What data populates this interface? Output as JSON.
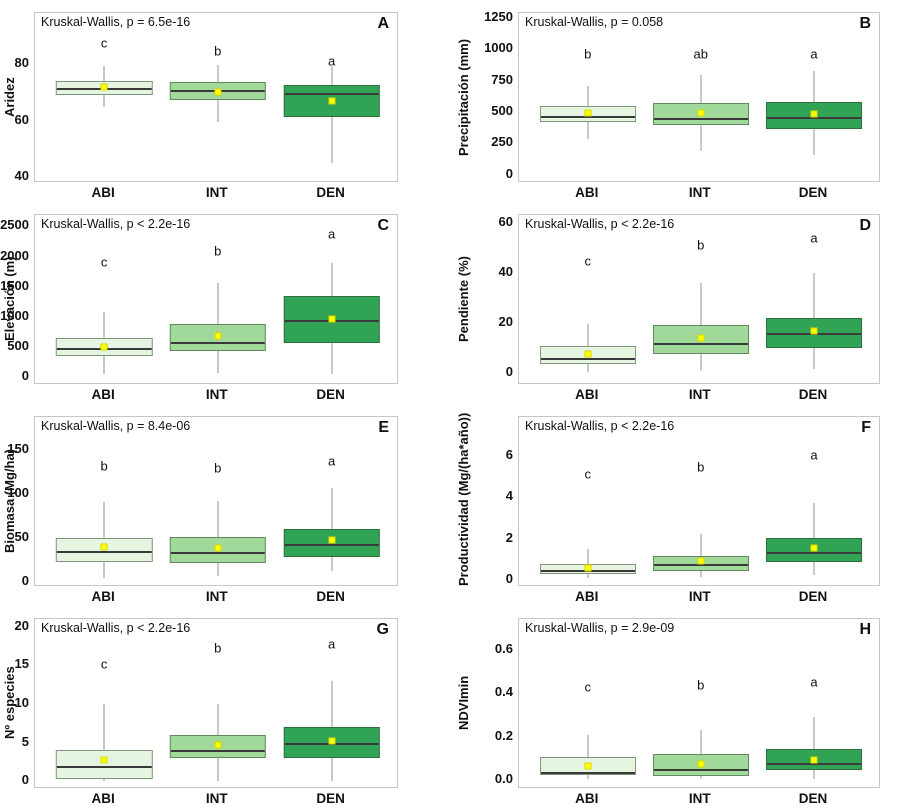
{
  "figure_title": "Kruskal-Wallis boxplot panels by forest density class",
  "groups": [
    "ABI",
    "INT",
    "DEN"
  ],
  "group_colors": [
    "#e5f5e0",
    "#a1d99b",
    "#31a354"
  ],
  "style": {
    "mean_marker_color": "#ffff00",
    "whisker_color": "#c9c9c9",
    "median_color": "#3a3a3a",
    "panel_border_color": "#c6c6c6",
    "box_border_color": "#4a5f4a"
  },
  "chart_data": [
    {
      "type": "boxplot",
      "panel": "A",
      "test_label": "Kruskal-Wallis, p = 6.5e-16",
      "ylabel": "Aridez",
      "ylim": [
        38,
        98
      ],
      "ticks": [
        {
          "v": 80,
          "label": "80"
        },
        {
          "v": 60,
          "label": "60"
        },
        {
          "v": 40,
          "label": "40"
        }
      ],
      "groups": [
        {
          "name": "ABI",
          "letter": "c",
          "letter_y": 87.5,
          "whisker_low": 64.9,
          "q1": 69.1,
          "median": 71.6,
          "q3": 74.1,
          "whisker_high": 79.3,
          "mean": 72.0
        },
        {
          "name": "INT",
          "letter": "b",
          "letter_y": 84.5,
          "whisker_low": 59.6,
          "q1": 67.4,
          "median": 70.8,
          "q3": 73.7,
          "whisker_high": 79.6,
          "mean": 70.0
        },
        {
          "name": "DEN",
          "letter": "a",
          "letter_y": 81.0,
          "whisker_low": 44.9,
          "q1": 61.4,
          "median": 69.8,
          "q3": 72.6,
          "whisker_high": 79.3,
          "mean": 67.0
        }
      ]
    },
    {
      "type": "boxplot",
      "panel": "B",
      "test_label": "Kruskal-Wallis, p = 0.058",
      "ylabel": "Precipitación (mm)",
      "ylim": [
        -66,
        1290
      ],
      "ticks": [
        {
          "v": 1250,
          "label": "1250"
        },
        {
          "v": 1000,
          "label": "1000"
        },
        {
          "v": 750,
          "label": "750"
        },
        {
          "v": 500,
          "label": "500"
        },
        {
          "v": 250,
          "label": "250"
        },
        {
          "v": 0,
          "label": "0"
        }
      ],
      "groups": [
        {
          "name": "ABI",
          "letter": "b",
          "letter_y": 960,
          "whisker_low": 285,
          "q1": 420,
          "median": 470,
          "q3": 545,
          "whisker_high": 705,
          "mean": 490
        },
        {
          "name": "INT",
          "letter": "ab",
          "letter_y": 960,
          "whisker_low": 190,
          "q1": 395,
          "median": 455,
          "q3": 570,
          "whisker_high": 795,
          "mean": 490
        },
        {
          "name": "DEN",
          "letter": "a",
          "letter_y": 960,
          "whisker_low": 155,
          "q1": 365,
          "median": 460,
          "q3": 580,
          "whisker_high": 825,
          "mean": 485
        }
      ]
    },
    {
      "type": "boxplot",
      "panel": "C",
      "test_label": "Kruskal-Wallis, p < 2.2e-16",
      "ylabel": "Elevación (m)",
      "ylim": [
        -130,
        2690
      ],
      "ticks": [
        {
          "v": 2500,
          "label": "2500"
        },
        {
          "v": 2000,
          "label": "2000"
        },
        {
          "v": 1500,
          "label": "1500"
        },
        {
          "v": 1000,
          "label": "1000"
        },
        {
          "v": 500,
          "label": "500"
        },
        {
          "v": 0,
          "label": "0"
        }
      ],
      "groups": [
        {
          "name": "ABI",
          "letter": "c",
          "letter_y": 1910,
          "whisker_low": 50,
          "q1": 350,
          "median": 490,
          "q3": 650,
          "whisker_high": 1080,
          "mean": 500
        },
        {
          "name": "INT",
          "letter": "b",
          "letter_y": 2100,
          "whisker_low": 70,
          "q1": 430,
          "median": 590,
          "q3": 880,
          "whisker_high": 1560,
          "mean": 690
        },
        {
          "name": "DEN",
          "letter": "a",
          "letter_y": 2370,
          "whisker_low": 60,
          "q1": 570,
          "median": 950,
          "q3": 1350,
          "whisker_high": 1900,
          "mean": 960
        }
      ]
    },
    {
      "type": "boxplot",
      "panel": "D",
      "test_label": "Kruskal-Wallis, p < 2.2e-16",
      "ylabel": "Pendiente (%)",
      "ylim": [
        -5,
        63
      ],
      "ticks": [
        {
          "v": 60,
          "label": "60"
        },
        {
          "v": 40,
          "label": "40"
        },
        {
          "v": 20,
          "label": "20"
        },
        {
          "v": 0,
          "label": "0"
        }
      ],
      "groups": [
        {
          "name": "ABI",
          "letter": "c",
          "letter_y": 44.7,
          "whisker_low": 0.2,
          "q1": 3.5,
          "median": 6,
          "q3": 10.5,
          "whisker_high": 19.5,
          "mean": 7.5
        },
        {
          "name": "INT",
          "letter": "b",
          "letter_y": 51.2,
          "whisker_low": 0.5,
          "q1": 7.5,
          "median": 12,
          "q3": 19,
          "whisker_high": 36,
          "mean": 14
        },
        {
          "name": "DEN",
          "letter": "a",
          "letter_y": 54.0,
          "whisker_low": 1.5,
          "q1": 10,
          "median": 16,
          "q3": 22,
          "whisker_high": 40,
          "mean": 16.5
        }
      ]
    },
    {
      "type": "boxplot",
      "panel": "E",
      "test_label": "Kruskal-Wallis, p = 8.4e-06",
      "ylabel": "Biomasa (Mg/ha)",
      "ylim": [
        -6,
        188
      ],
      "ticks": [
        {
          "v": 150,
          "label": "150"
        },
        {
          "v": 100,
          "label": "100"
        },
        {
          "v": 50,
          "label": "50"
        },
        {
          "v": 0,
          "label": "0"
        }
      ],
      "groups": [
        {
          "name": "ABI",
          "letter": "b",
          "letter_y": 132,
          "whisker_low": 4,
          "q1": 23,
          "median": 35,
          "q3": 50,
          "whisker_high": 91,
          "mean": 40
        },
        {
          "name": "INT",
          "letter": "b",
          "letter_y": 130,
          "whisker_low": 6,
          "q1": 21,
          "median": 34,
          "q3": 51,
          "whisker_high": 92,
          "mean": 39
        },
        {
          "name": "DEN",
          "letter": "a",
          "letter_y": 138,
          "whisker_low": 12,
          "q1": 28,
          "median": 43,
          "q3": 60,
          "whisker_high": 107,
          "mean": 48
        }
      ]
    },
    {
      "type": "boxplot",
      "panel": "F",
      "test_label": "Kruskal-Wallis, p < 2.2e-16",
      "ylabel": "Productividad (Mg/(ha*año))",
      "ylim": [
        -0.35,
        7.9
      ],
      "ticks": [
        {
          "v": 6,
          "label": "6"
        },
        {
          "v": 4,
          "label": "4"
        },
        {
          "v": 2,
          "label": "2"
        },
        {
          "v": 0,
          "label": "0"
        }
      ],
      "groups": [
        {
          "name": "ABI",
          "letter": "c",
          "letter_y": 5.15,
          "whisker_low": 0.1,
          "q1": 0.28,
          "median": 0.47,
          "q3": 0.78,
          "whisker_high": 1.5,
          "mean": 0.55
        },
        {
          "name": "INT",
          "letter": "b",
          "letter_y": 5.48,
          "whisker_low": 0.15,
          "q1": 0.45,
          "median": 0.75,
          "q3": 1.15,
          "whisker_high": 2.2,
          "mean": 0.9
        },
        {
          "name": "DEN",
          "letter": "a",
          "letter_y": 6.05,
          "whisker_low": 0.25,
          "q1": 0.85,
          "median": 1.35,
          "q3": 2.05,
          "whisker_high": 3.75,
          "mean": 1.55
        }
      ]
    },
    {
      "type": "boxplot",
      "panel": "G",
      "test_label": "Kruskal-Wallis, p < 2.2e-16",
      "ylabel": "Nº especies",
      "ylim": [
        -1,
        21
      ],
      "ticks": [
        {
          "v": 20,
          "label": "20"
        },
        {
          "v": 15,
          "label": "15"
        },
        {
          "v": 10,
          "label": "10"
        },
        {
          "v": 5,
          "label": "5"
        },
        {
          "v": 0,
          "label": "0"
        }
      ],
      "groups": [
        {
          "name": "ABI",
          "letter": "c",
          "letter_y": 15.2,
          "whisker_low": 0,
          "q1": 0.25,
          "median": 2,
          "q3": 4,
          "whisker_high": 10,
          "mean": 2.7
        },
        {
          "name": "INT",
          "letter": "b",
          "letter_y": 17.2,
          "whisker_low": 0,
          "q1": 3,
          "median": 4,
          "q3": 6,
          "whisker_high": 10,
          "mean": 4.7
        },
        {
          "name": "DEN",
          "letter": "a",
          "letter_y": 17.8,
          "whisker_low": 0,
          "q1": 3,
          "median": 5,
          "q3": 7,
          "whisker_high": 13,
          "mean": 5.2
        }
      ]
    },
    {
      "type": "boxplot",
      "panel": "H",
      "test_label": "Kruskal-Wallis, p = 2.9e-09",
      "ylabel": "NDVImin",
      "ylim": [
        -0.04,
        0.74
      ],
      "ticks": [
        {
          "v": 0.6,
          "label": "0.6"
        },
        {
          "v": 0.4,
          "label": "0.4"
        },
        {
          "v": 0.2,
          "label": "0.2"
        },
        {
          "v": 0.0,
          "label": "0.0"
        }
      ],
      "groups": [
        {
          "name": "ABI",
          "letter": "c",
          "letter_y": 0.43,
          "whisker_low": 0.005,
          "q1": 0.025,
          "median": 0.04,
          "q3": 0.105,
          "whisker_high": 0.21,
          "mean": 0.065
        },
        {
          "name": "INT",
          "letter": "b",
          "letter_y": 0.435,
          "whisker_low": 0.005,
          "q1": 0.02,
          "median": 0.05,
          "q3": 0.12,
          "whisker_high": 0.23,
          "mean": 0.075
        },
        {
          "name": "DEN",
          "letter": "a",
          "letter_y": 0.45,
          "whisker_low": 0.005,
          "q1": 0.045,
          "median": 0.08,
          "q3": 0.145,
          "whisker_high": 0.29,
          "mean": 0.095
        }
      ]
    }
  ]
}
